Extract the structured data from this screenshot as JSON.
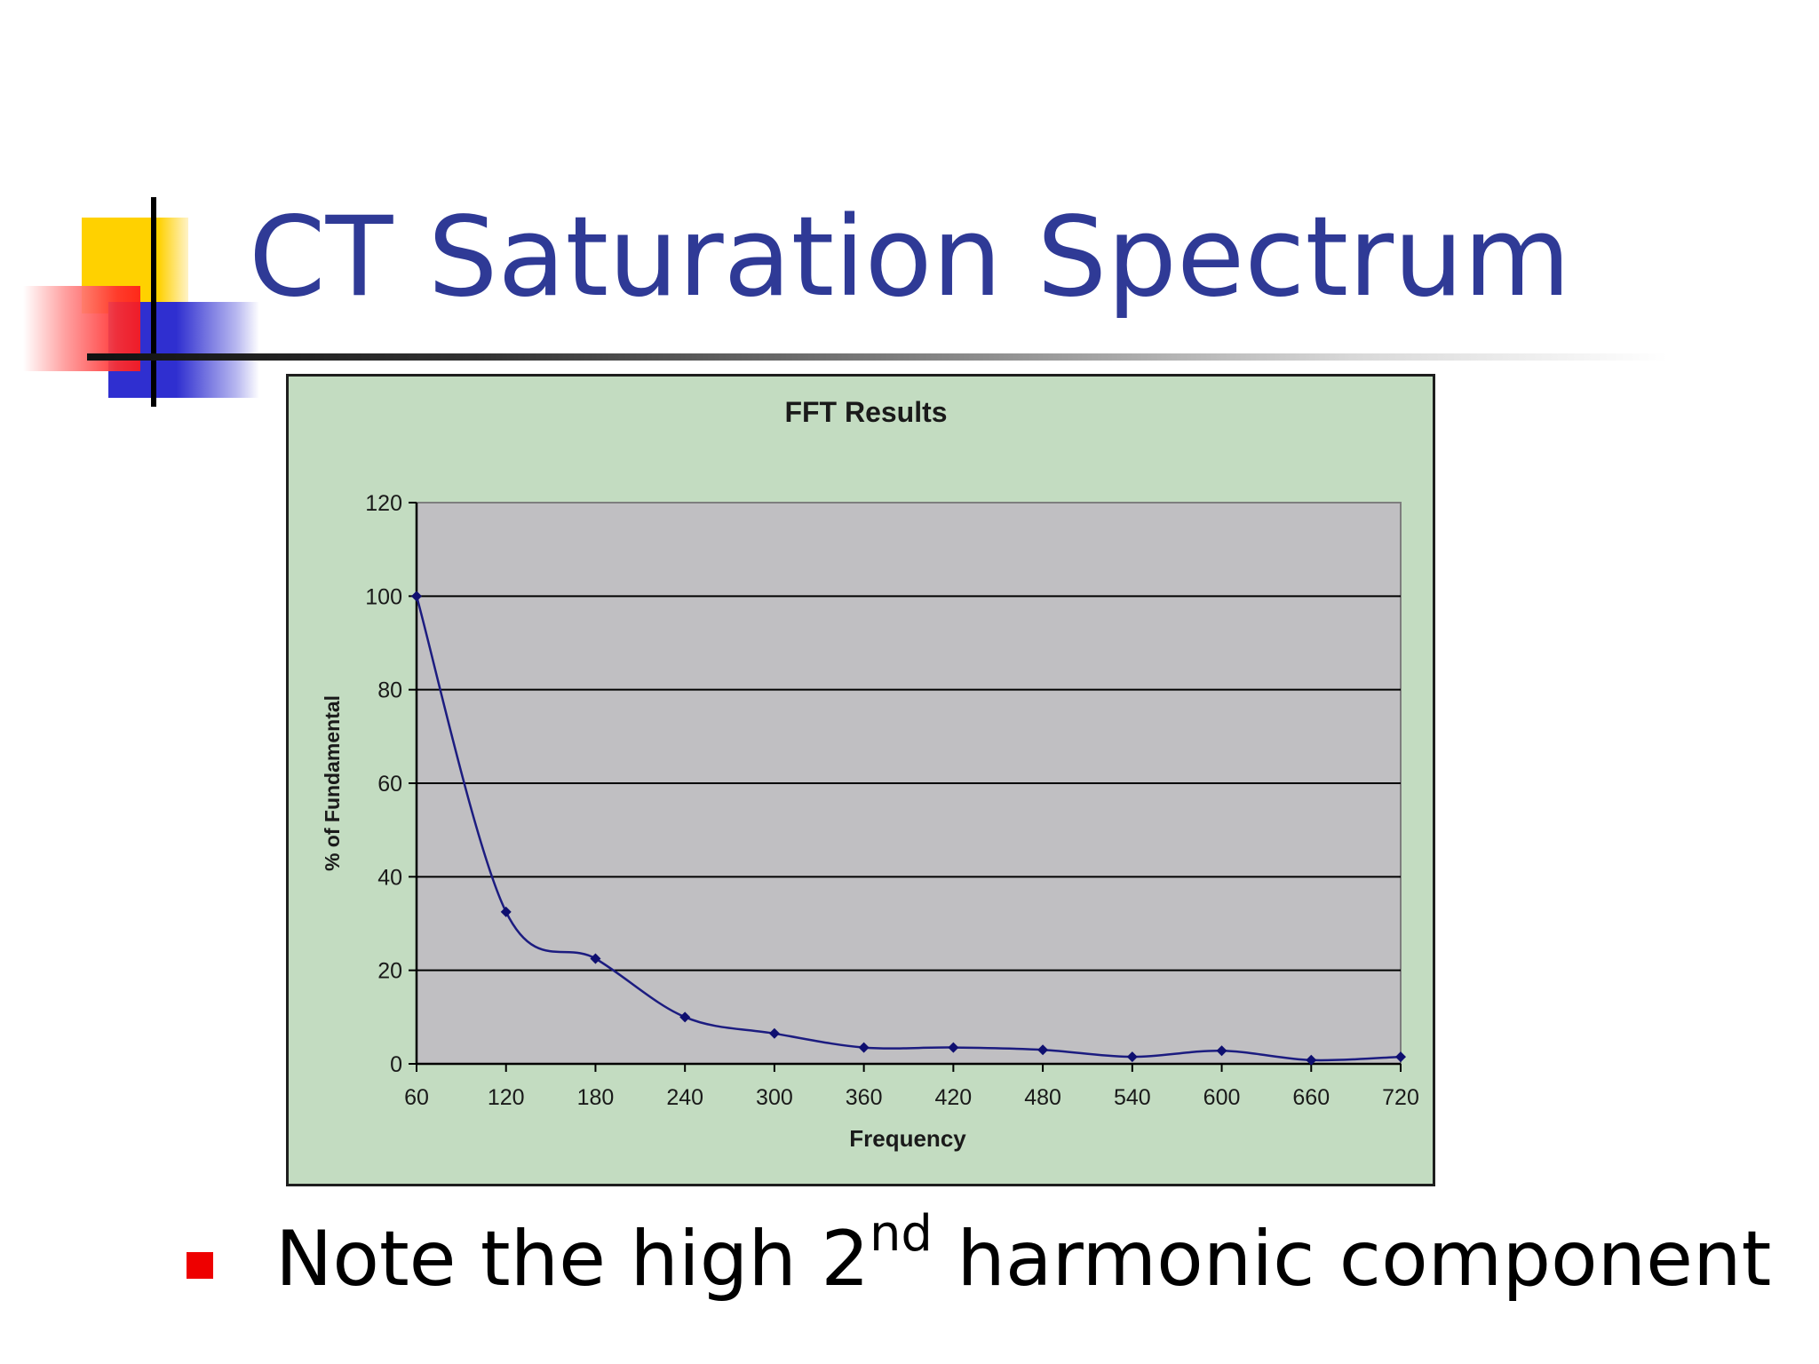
{
  "slide": {
    "title": "CT Saturation Spectrum",
    "bullet": {
      "before": "Note the high 2",
      "superscript": "nd",
      "after": " harmonic component"
    }
  },
  "colors": {
    "title": "#2f3a96",
    "bullet": "#ee0000",
    "chart_background": "#c3dcc1",
    "plot_background": "#c0bfc2",
    "series": "#1c1c80"
  },
  "chart_data": {
    "type": "line",
    "title": "FFT Results",
    "xlabel": "Frequency",
    "ylabel": "% of Fundamental",
    "categories": [
      "60",
      "120",
      "180",
      "240",
      "300",
      "360",
      "420",
      "480",
      "540",
      "600",
      "660",
      "720"
    ],
    "series": [
      {
        "values": [
          100,
          32.5,
          22.5,
          10,
          6.5,
          3.5,
          3.5,
          3,
          1.5,
          2.8,
          0.8,
          1.5
        ]
      }
    ],
    "ylim": [
      0,
      120
    ],
    "yticks": [
      0,
      20,
      40,
      60,
      80,
      100,
      120
    ],
    "grid": true,
    "legend": "none"
  }
}
